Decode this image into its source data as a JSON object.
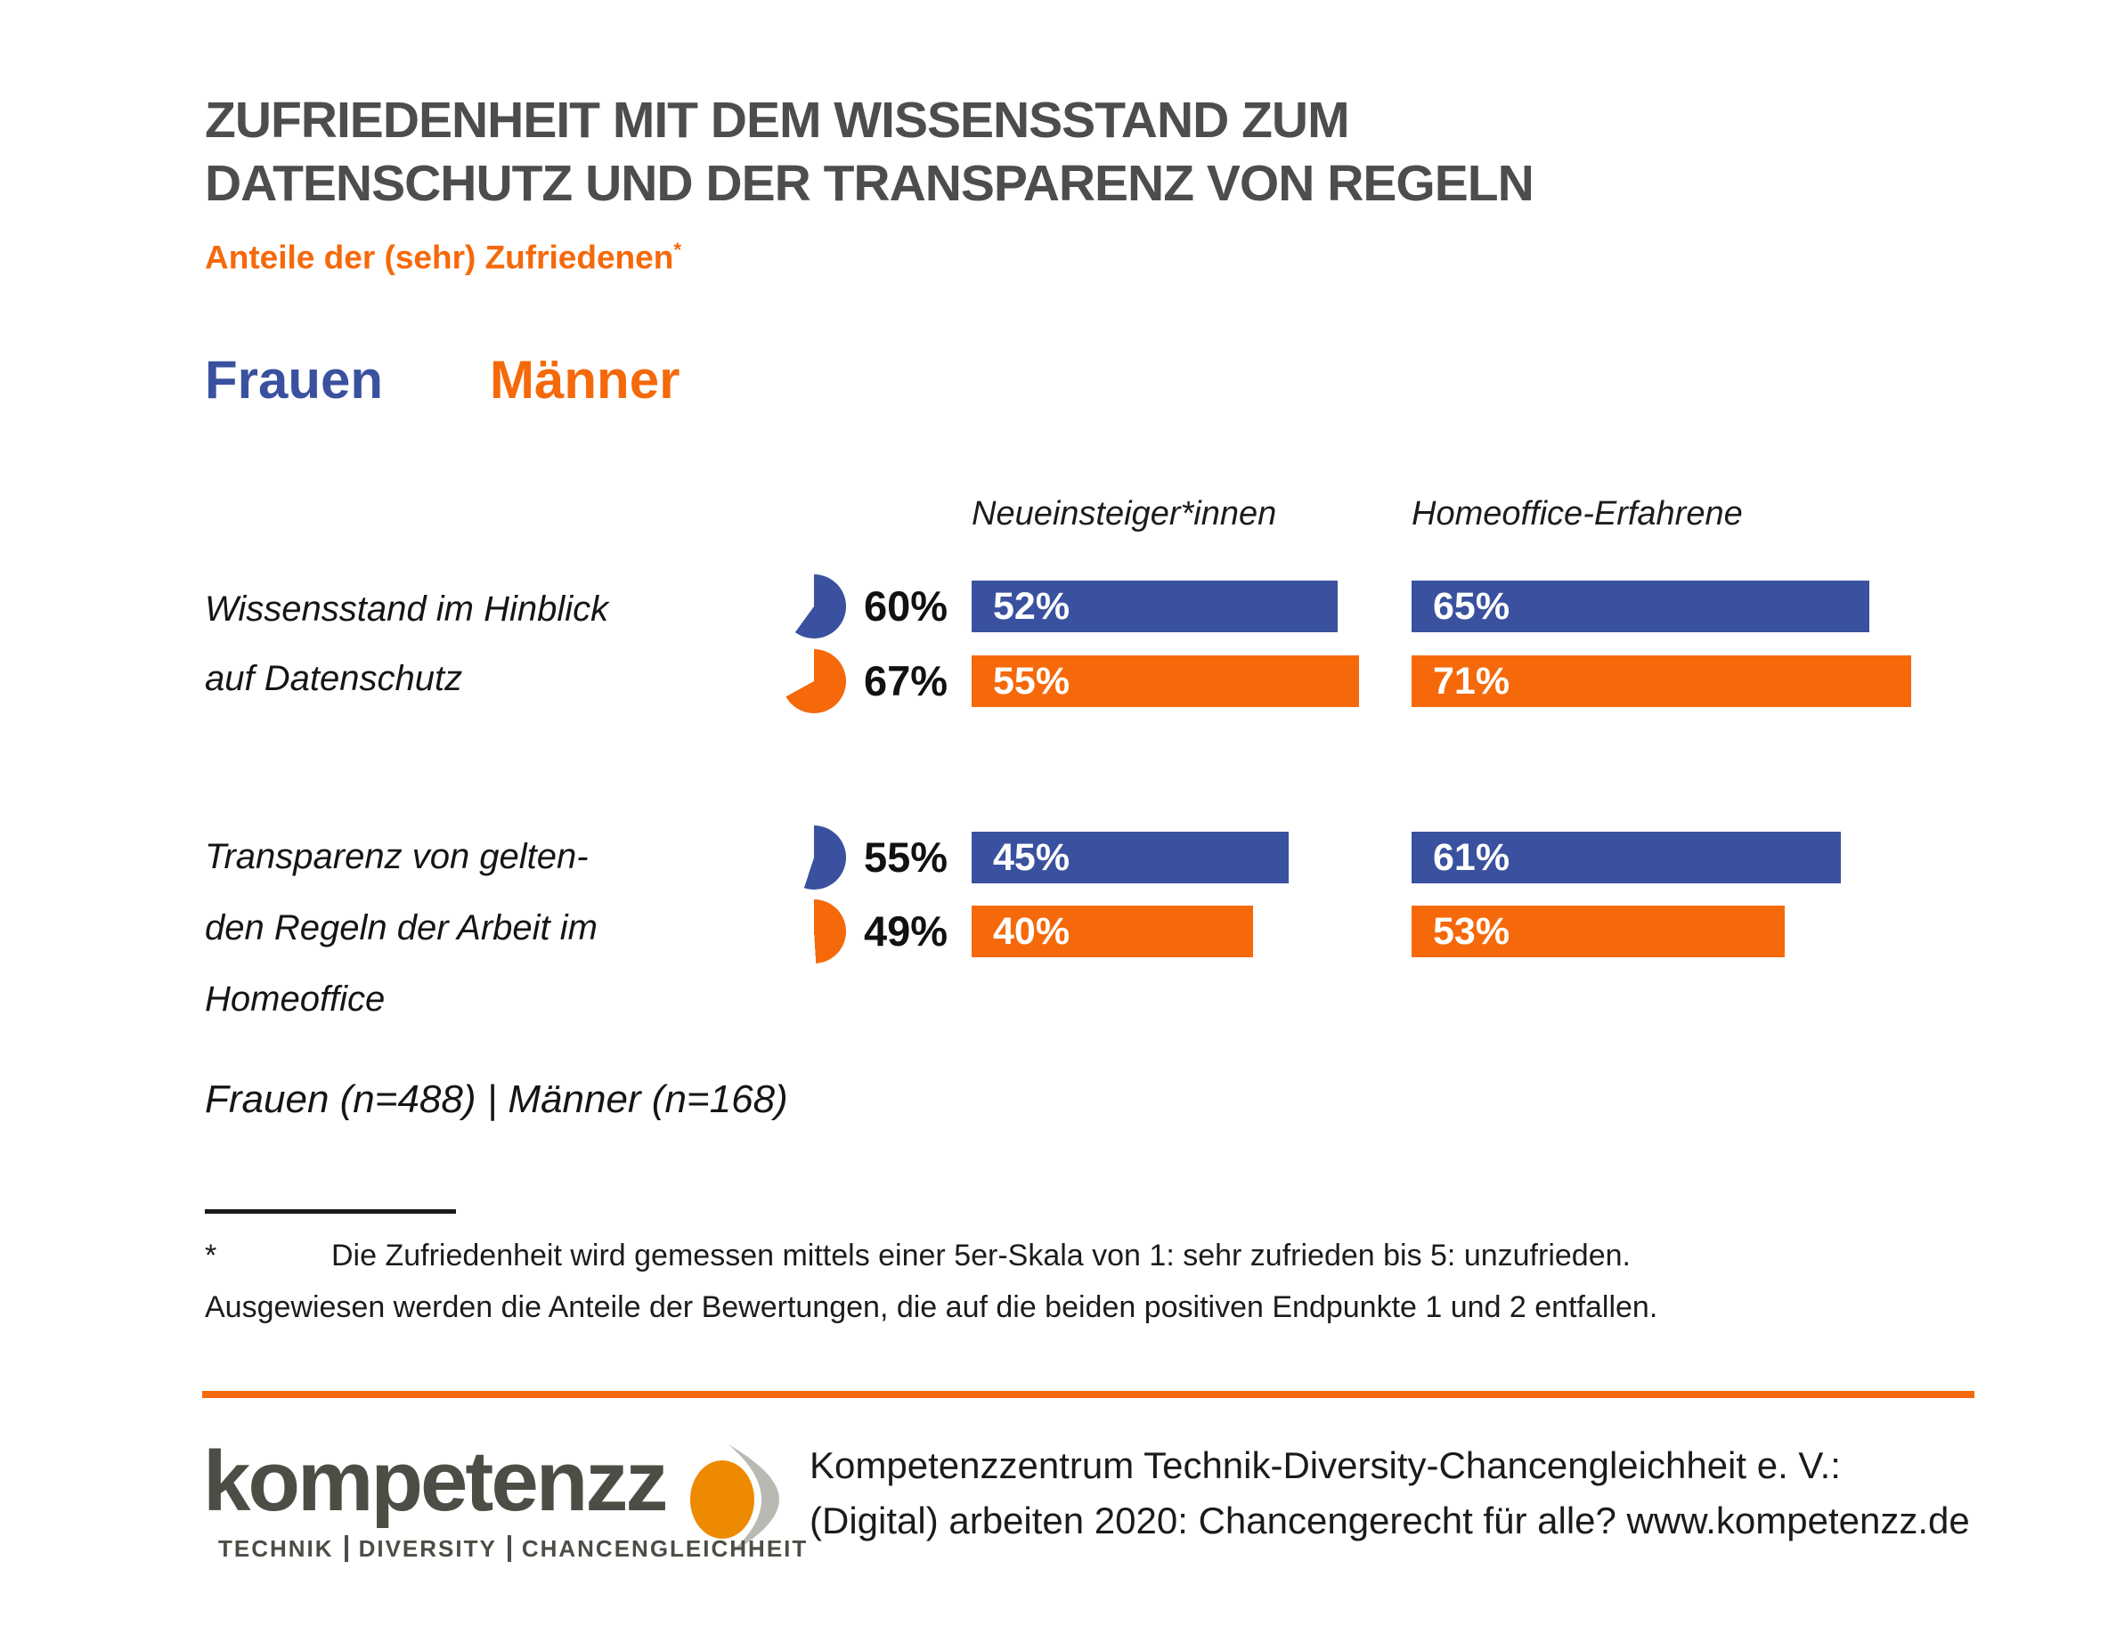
{
  "page": {
    "title_lines": [
      "ZUFRIEDENHEIT MIT DEM WISSENSSTAND ZUM",
      "DATENSCHUTZ UND DER TRANSPARENZ VON REGELN"
    ],
    "subtitle": "Anteile der (sehr) Zufriedenen",
    "subtitle_superscript": "*"
  },
  "colors": {
    "frauen": "#3a519f",
    "maenner": "#f5690b",
    "title_gray": "#4d4d4d",
    "logo_orange": "#ee8a00",
    "logo_gray": "#b9b9b3"
  },
  "legend": {
    "frauen": "Frauen",
    "maenner": "Männer"
  },
  "chart_data": {
    "type": "bar",
    "unit": "%",
    "title": "ZUFRIEDENHEIT MIT DEM WISSENSSTAND ZUM DATENSCHUTZ UND DER TRANSPARENZ VON REGELN",
    "subtitle": "Anteile der (sehr) Zufriedenen*",
    "legend_position": "top-left",
    "columns": [
      "Neueinsteiger*innen",
      "Homeoffice-Erfahrene"
    ],
    "series_names": [
      "Frauen",
      "Männer"
    ],
    "value_range": [
      0,
      100
    ],
    "groups": [
      {
        "label_lines": [
          "Wissensstand im Hinblick",
          "auf Datenschutz"
        ],
        "rows": [
          {
            "series": "Frauen",
            "gesamt": 60,
            "neueinsteiger": 52,
            "homeoffice": 65
          },
          {
            "series": "Männer",
            "gesamt": 67,
            "neueinsteiger": 55,
            "homeoffice": 71
          }
        ]
      },
      {
        "label_lines": [
          "Transparenz von gelten-",
          "den Regeln der Arbeit im",
          "Homeoffice"
        ],
        "rows": [
          {
            "series": "Frauen",
            "gesamt": 55,
            "neueinsteiger": 45,
            "homeoffice": 61
          },
          {
            "series": "Männer",
            "gesamt": 49,
            "neueinsteiger": 40,
            "homeoffice": 53
          }
        ]
      }
    ],
    "sample_note": "Frauen (n=488) | Männer (n=168)"
  },
  "footnote": {
    "marker": "*",
    "line1": "Die Zufriedenheit wird gemessen mittels einer 5er-Skala von 1: sehr zufrieden bis 5: unzufrieden.",
    "line2": "Ausgewiesen werden die Anteile der Bewertungen, die auf die beiden positiven Endpunkte 1 und 2 entfallen."
  },
  "footer": {
    "logo_text": "kompetenzz",
    "logo_tagline": [
      "TECHNIK",
      "DIVERSITY",
      "CHANCENGLEICHHEIT"
    ],
    "logo_mark_icon": "kompetenzz-arrow-mark-icon",
    "line1": "Kompetenzzentrum Technik-Diversity-Chancengleichheit e. V.:",
    "line2": "(Digital) arbeiten 2020: Chancengerecht für alle? www.kompetenzz.de"
  }
}
